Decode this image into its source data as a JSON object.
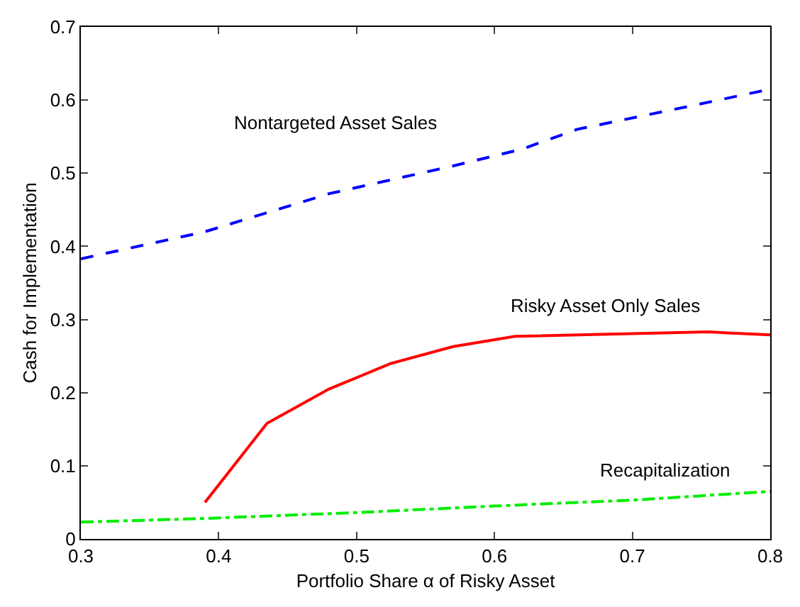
{
  "chart_data": {
    "type": "line",
    "xlabel": "Portfolio Share α of Risky Asset",
    "ylabel": "Cash for Implementation",
    "xlim": [
      0.3,
      0.8
    ],
    "xticks": [
      0.3,
      0.4,
      0.5,
      0.6,
      0.7,
      0.8
    ],
    "ylim": [
      0,
      0.7
    ],
    "yticks": [
      0,
      0.1,
      0.2,
      0.3,
      0.4,
      0.5,
      0.6,
      0.7
    ],
    "legend": false,
    "series": [
      {
        "name": "Nontargeted Asset Sales",
        "color": "#0000ff",
        "line_style": "dashed",
        "x": [
          0.3,
          0.39,
          0.48,
          0.57,
          0.62,
          0.66,
          0.75,
          0.8
        ],
        "values": [
          0.383,
          0.42,
          0.472,
          0.51,
          0.533,
          0.56,
          0.595,
          0.615
        ]
      },
      {
        "name": "Risky Asset Only Sales",
        "color": "#ff0000",
        "line_style": "solid",
        "x": [
          0.39,
          0.435,
          0.48,
          0.525,
          0.57,
          0.615,
          0.755,
          0.8
        ],
        "values": [
          0.05,
          0.158,
          0.205,
          0.24,
          0.263,
          0.277,
          0.283,
          0.279
        ]
      },
      {
        "name": "Recapitalization",
        "color": "#00ee00",
        "line_style": "dashdot",
        "x": [
          0.3,
          0.39,
          0.5,
          0.6,
          0.7,
          0.8
        ],
        "values": [
          0.023,
          0.028,
          0.036,
          0.045,
          0.053,
          0.065
        ]
      }
    ]
  }
}
